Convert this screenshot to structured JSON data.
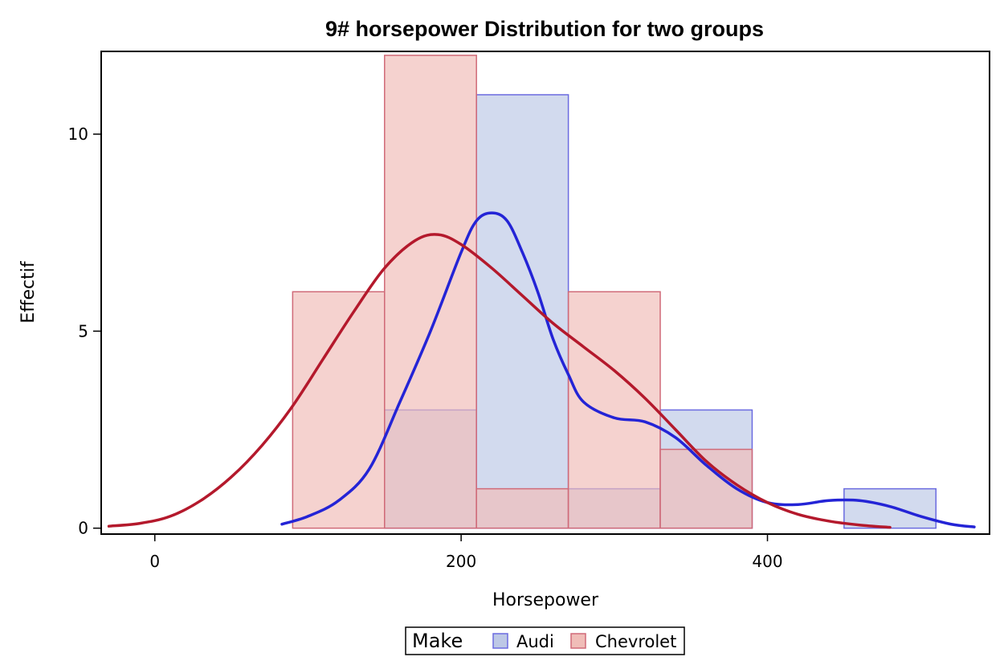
{
  "chart_data": {
    "type": "bar",
    "title": "9# horsepower Distribution for two groups",
    "xlabel": "Horsepower",
    "ylabel": "Effectif",
    "xlim": [
      -35,
      545
    ],
    "ylim": [
      -0.15,
      12.1
    ],
    "xticks": [
      0,
      200,
      400
    ],
    "yticks": [
      0,
      5,
      10
    ],
    "bin_edges": [
      90,
      150,
      210,
      270,
      330,
      390,
      450,
      510
    ],
    "series": [
      {
        "name": "Audi",
        "bins": [
          [
            150,
            210,
            3
          ],
          [
            210,
            270,
            11
          ],
          [
            270,
            330,
            1
          ],
          [
            330,
            390,
            3
          ],
          [
            450,
            510,
            1
          ]
        ],
        "fill": "#bdc8e6",
        "stroke": "#6b6be0",
        "curve_color": "#2424d6",
        "kde": {
          "x": [
            83,
            100,
            120,
            140,
            160,
            180,
            200,
            210,
            220,
            230,
            240,
            250,
            260,
            270,
            280,
            300,
            320,
            340,
            360,
            380,
            400,
            420,
            440,
            460,
            480,
            500,
            520,
            535
          ],
          "y": [
            0.1,
            0.3,
            0.7,
            1.5,
            3.2,
            5.0,
            7.0,
            7.8,
            8.0,
            7.8,
            7.0,
            6.0,
            4.8,
            3.9,
            3.2,
            2.8,
            2.7,
            2.3,
            1.6,
            1.0,
            0.65,
            0.6,
            0.7,
            0.7,
            0.55,
            0.3,
            0.1,
            0.03
          ]
        }
      },
      {
        "name": "Chevrolet",
        "bins": [
          [
            90,
            150,
            6
          ],
          [
            150,
            210,
            12
          ],
          [
            210,
            270,
            1
          ],
          [
            270,
            330,
            6
          ],
          [
            330,
            390,
            2
          ]
        ],
        "fill": "#f0bdb8",
        "stroke": "#d06a78",
        "curve_color": "#b4192c",
        "kde": {
          "x": [
            -30,
            -10,
            10,
            30,
            50,
            70,
            90,
            110,
            130,
            150,
            170,
            185,
            200,
            220,
            240,
            260,
            280,
            300,
            320,
            340,
            360,
            380,
            400,
            420,
            440,
            460,
            480
          ],
          "y": [
            0.05,
            0.12,
            0.3,
            0.7,
            1.3,
            2.1,
            3.1,
            4.3,
            5.5,
            6.6,
            7.3,
            7.45,
            7.2,
            6.6,
            5.9,
            5.2,
            4.6,
            4.0,
            3.3,
            2.5,
            1.7,
            1.1,
            0.65,
            0.35,
            0.18,
            0.08,
            0.02
          ]
        }
      }
    ],
    "legend": {
      "title": "Make",
      "position": "bottom-center"
    },
    "grid": false
  }
}
